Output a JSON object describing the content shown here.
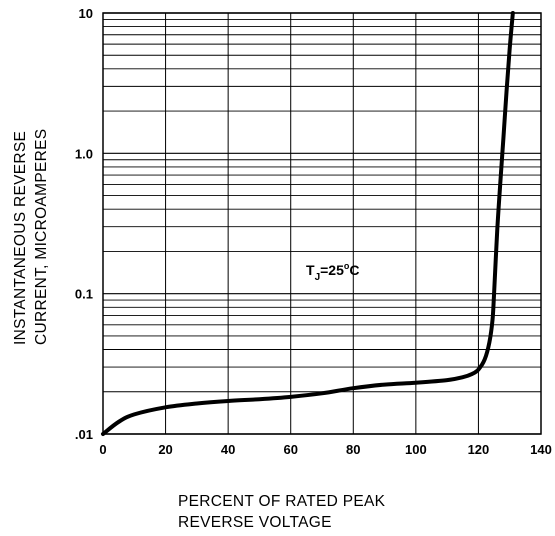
{
  "chart_data": {
    "type": "line",
    "title": "",
    "xlabel_lines": [
      "PERCENT OF RATED PEAK",
      "REVERSE VOLTAGE"
    ],
    "ylabel_lines": [
      "INSTANTANEOUS REVERSE",
      "CURRENT, MICROAMPERES"
    ],
    "x_ticks": [
      "0",
      "20",
      "40",
      "60",
      "80",
      "100",
      "120",
      "140"
    ],
    "y_ticks": [
      ".01",
      "0.1",
      "1.0",
      "10"
    ],
    "xlim": [
      0,
      140
    ],
    "ylim": [
      0.01,
      10
    ],
    "yscale": "log",
    "grid": true,
    "annotation": {
      "base": "T",
      "subscript": "J",
      "value": "=25",
      "sup": "o",
      "unit": "C"
    },
    "series": [
      {
        "x": [
          0,
          5,
          10,
          20,
          30,
          40,
          50,
          60,
          70,
          80,
          90,
          100,
          110,
          115,
          118,
          120,
          122,
          123.5,
          124.5,
          125,
          126,
          127,
          128,
          129,
          130,
          131
        ],
        "y": [
          0.01,
          0.0122,
          0.0138,
          0.0155,
          0.0165,
          0.0172,
          0.0177,
          0.0184,
          0.0195,
          0.0212,
          0.0225,
          0.0232,
          0.0242,
          0.0254,
          0.0268,
          0.0288,
          0.034,
          0.045,
          0.065,
          0.1,
          0.28,
          0.62,
          1.3,
          2.8,
          5.6,
          10
        ]
      }
    ]
  }
}
